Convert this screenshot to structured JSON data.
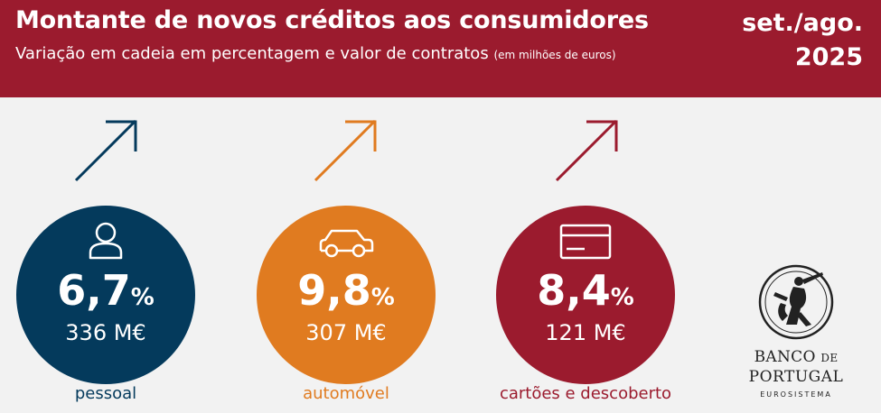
{
  "header": {
    "title": "Montante de novos créditos aos consumidores",
    "subtitle": "Variação em cadeia em percentagem e valor de contratos",
    "subtitle_note": "(em milhões de euros)",
    "period_line1": "set./ago.",
    "period_line2": "2025",
    "background_color": "#9b1b2e"
  },
  "categories": [
    {
      "label": "pessoal",
      "icon": "person-icon",
      "percent_value": "6,7",
      "percent_sign": "%",
      "amount": "336 M€",
      "trend": "up-arrow-icon",
      "color": "#043a5c",
      "label_color": "#043a5c"
    },
    {
      "label": "automóvel",
      "icon": "car-icon",
      "percent_value": "9,8",
      "percent_sign": "%",
      "amount": "307 M€",
      "trend": "up-arrow-icon",
      "color": "#e07b20",
      "label_color": "#e07b20"
    },
    {
      "label": "cartões e descoberto",
      "icon": "credit-card-icon",
      "percent_value": "8,4",
      "percent_sign": "%",
      "amount": "121 M€",
      "trend": "up-arrow-icon",
      "color": "#9b1b2e",
      "label_color": "#9b1b2e"
    }
  ],
  "logo": {
    "line1_main": "BANCO",
    "line1_small": "DE",
    "line2": "PORTUGAL",
    "line3": "EUROSISTEMA"
  }
}
